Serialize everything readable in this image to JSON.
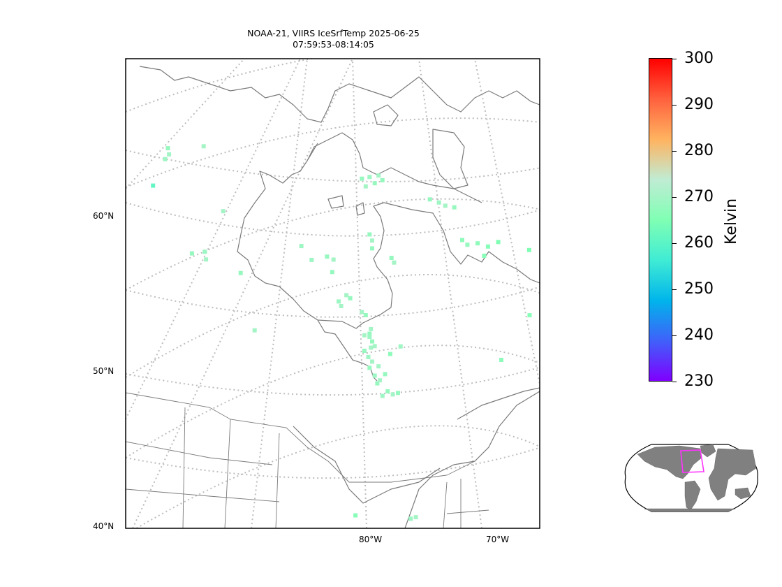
{
  "title_line1": "NOAA-21, VIIRS IceSrfTemp 2025-06-25",
  "title_line2": "07:59:53-08:14:05",
  "colors": {
    "coastline": "#7a7a7a",
    "gridline": "#bdbdbd",
    "land_inset": "#808080",
    "inset_box": "#ff33ff",
    "colormap": [
      "#7f00ff",
      "#3f61fa",
      "#00b5eb",
      "#40ecd4",
      "#80ffb4",
      "#c0ecd4",
      "#ffb360",
      "#ff613e",
      "#ff0000"
    ]
  },
  "chart_data": {
    "type": "scatter",
    "projection": "map (conic) with inset globe locator",
    "lat_labels": [
      "60°N",
      "50°N",
      "40°N"
    ],
    "lon_labels": [
      "80°W",
      "70°W"
    ],
    "colorbar": {
      "label": "Kelvin",
      "min": 230,
      "max": 300,
      "ticks": [
        230,
        240,
        250,
        260,
        270,
        280,
        290,
        300
      ],
      "colormap": "rainbow"
    },
    "gridlines": "dotted",
    "points": [
      {
        "lat": 64.6,
        "lon": -96.0,
        "value": 268
      },
      {
        "lat": 64.2,
        "lon": -95.9,
        "value": 270
      },
      {
        "lat": 63.9,
        "lon": -96.2,
        "value": 269
      },
      {
        "lat": 62.2,
        "lon": -97.1,
        "value": 261
      },
      {
        "lat": 64.7,
        "lon": -93.2,
        "value": 270
      },
      {
        "lat": 60.5,
        "lon": -91.6,
        "value": 270
      },
      {
        "lat": 57.8,
        "lon": -94.0,
        "value": 268
      },
      {
        "lat": 57.9,
        "lon": -93.0,
        "value": 269
      },
      {
        "lat": 57.4,
        "lon": -92.9,
        "value": 270
      },
      {
        "lat": 56.5,
        "lon": -90.2,
        "value": 268
      },
      {
        "lat": 52.8,
        "lon": -89.1,
        "value": 270
      },
      {
        "lat": 58.2,
        "lon": -85.5,
        "value": 269
      },
      {
        "lat": 57.3,
        "lon": -84.7,
        "value": 269
      },
      {
        "lat": 57.5,
        "lon": -83.5,
        "value": 268
      },
      {
        "lat": 57.3,
        "lon": -83.0,
        "value": 270
      },
      {
        "lat": 56.5,
        "lon": -83.1,
        "value": 268
      },
      {
        "lat": 55.0,
        "lon": -82.0,
        "value": 270
      },
      {
        "lat": 54.8,
        "lon": -81.7,
        "value": 268
      },
      {
        "lat": 54.6,
        "lon": -82.6,
        "value": 269
      },
      {
        "lat": 54.3,
        "lon": -82.4,
        "value": 270
      },
      {
        "lat": 53.9,
        "lon": -80.8,
        "value": 270
      },
      {
        "lat": 53.7,
        "lon": -80.5,
        "value": 268
      },
      {
        "lat": 52.8,
        "lon": -80.1,
        "value": 270
      },
      {
        "lat": 52.5,
        "lon": -80.2,
        "value": 268
      },
      {
        "lat": 52.4,
        "lon": -80.6,
        "value": 270
      },
      {
        "lat": 52.3,
        "lon": -80.2,
        "value": 269
      },
      {
        "lat": 52.0,
        "lon": -80.0,
        "value": 268
      },
      {
        "lat": 51.7,
        "lon": -79.8,
        "value": 270
      },
      {
        "lat": 51.6,
        "lon": -80.1,
        "value": 270
      },
      {
        "lat": 51.4,
        "lon": -80.6,
        "value": 268
      },
      {
        "lat": 51.0,
        "lon": -80.3,
        "value": 269
      },
      {
        "lat": 50.7,
        "lon": -80.0,
        "value": 270
      },
      {
        "lat": 50.3,
        "lon": -80.2,
        "value": 268
      },
      {
        "lat": 49.8,
        "lon": -79.8,
        "value": 269
      },
      {
        "lat": 49.3,
        "lon": -79.6,
        "value": 268
      },
      {
        "lat": 49.5,
        "lon": -79.4,
        "value": 270
      },
      {
        "lat": 51.2,
        "lon": -78.6,
        "value": 267
      },
      {
        "lat": 51.7,
        "lon": -77.8,
        "value": 269
      },
      {
        "lat": 58.9,
        "lon": -80.2,
        "value": 268
      },
      {
        "lat": 58.5,
        "lon": -80.0,
        "value": 270
      },
      {
        "lat": 58.0,
        "lon": -80.0,
        "value": 268
      },
      {
        "lat": 57.4,
        "lon": -78.5,
        "value": 268
      },
      {
        "lat": 57.1,
        "lon": -78.3,
        "value": 270
      },
      {
        "lat": 62.5,
        "lon": -80.8,
        "value": 268
      },
      {
        "lat": 62.6,
        "lon": -80.2,
        "value": 269
      },
      {
        "lat": 62.7,
        "lon": -79.5,
        "value": 270
      },
      {
        "lat": 62.4,
        "lon": -79.2,
        "value": 268
      },
      {
        "lat": 62.2,
        "lon": -79.8,
        "value": 268
      },
      {
        "lat": 62.0,
        "lon": -80.5,
        "value": 270
      },
      {
        "lat": 61.2,
        "lon": -75.5,
        "value": 268
      },
      {
        "lat": 61.0,
        "lon": -74.8,
        "value": 269
      },
      {
        "lat": 60.8,
        "lon": -74.3,
        "value": 270
      },
      {
        "lat": 60.7,
        "lon": -73.6,
        "value": 268
      },
      {
        "lat": 58.6,
        "lon": -73.0,
        "value": 267
      },
      {
        "lat": 58.3,
        "lon": -72.6,
        "value": 268
      },
      {
        "lat": 58.4,
        "lon": -71.8,
        "value": 267
      },
      {
        "lat": 58.2,
        "lon": -71.0,
        "value": 266
      },
      {
        "lat": 58.5,
        "lon": -70.2,
        "value": 265
      },
      {
        "lat": 57.6,
        "lon": -71.3,
        "value": 266
      },
      {
        "lat": 58.0,
        "lon": -67.8,
        "value": 265
      },
      {
        "lat": 53.8,
        "lon": -67.8,
        "value": 266
      },
      {
        "lat": 50.9,
        "lon": -70.0,
        "value": 267
      },
      {
        "lat": 48.8,
        "lon": -78.8,
        "value": 268
      },
      {
        "lat": 48.6,
        "lon": -78.4,
        "value": 270
      },
      {
        "lat": 48.7,
        "lon": -78.0,
        "value": 268
      },
      {
        "lat": 48.5,
        "lon": -79.2,
        "value": 269
      },
      {
        "lat": 40.8,
        "lon": -81.3,
        "value": 266
      },
      {
        "lat": 40.6,
        "lon": -77.0,
        "value": 269
      },
      {
        "lat": 40.7,
        "lon": -76.6,
        "value": 270
      },
      {
        "lat": 49.9,
        "lon": -79.0,
        "value": 268
      },
      {
        "lat": 50.4,
        "lon": -79.5,
        "value": 270
      }
    ]
  }
}
